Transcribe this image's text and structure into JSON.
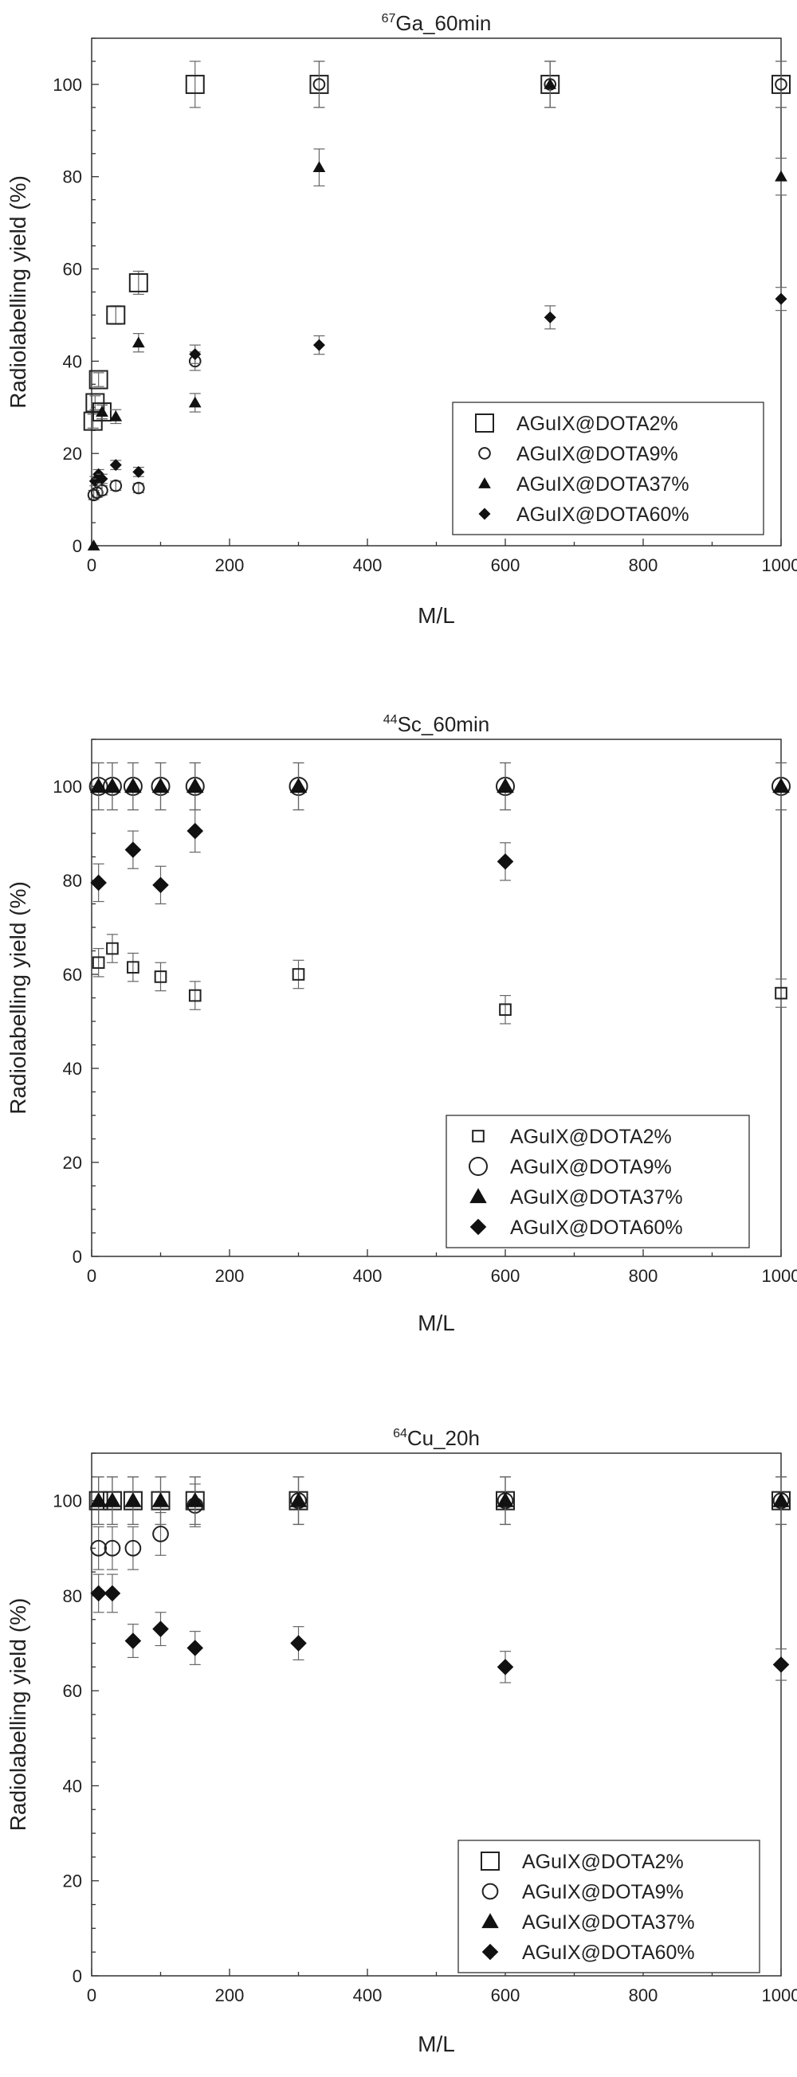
{
  "chart_data": [
    {
      "type": "scatter",
      "title_sup": "67",
      "title": "Ga_60min",
      "xlabel": "M/L",
      "ylabel": "Radiolabelling yield (%)",
      "xlim": [
        0,
        1000
      ],
      "ylim": [
        0,
        110
      ],
      "xticks": [
        0,
        200,
        400,
        600,
        800,
        1000
      ],
      "yticks": [
        0,
        20,
        40,
        60,
        80,
        100
      ],
      "legend_position": "lower-right",
      "series": [
        {
          "name": "AGuIX@DOTA2%",
          "marker": "square-open",
          "size": "large",
          "points": [
            [
              2,
              27,
              1.5
            ],
            [
              5,
              31,
              1.5
            ],
            [
              10,
              36,
              1.5
            ],
            [
              15,
              29,
              1.5
            ],
            [
              35,
              50,
              2
            ],
            [
              68,
              57,
              2.5
            ],
            [
              150,
              100,
              5
            ],
            [
              330,
              100,
              5
            ],
            [
              665,
              100,
              5
            ],
            [
              1000,
              100,
              5
            ]
          ]
        },
        {
          "name": "AGuIX@DOTA9%",
          "marker": "circle-open",
          "size": "small",
          "points": [
            [
              3,
              11,
              1
            ],
            [
              8,
              11.5,
              1
            ],
            [
              15,
              12,
              1
            ],
            [
              35,
              13,
              1
            ],
            [
              68,
              12.5,
              1
            ],
            [
              150,
              40,
              2
            ],
            [
              330,
              100,
              5
            ],
            [
              665,
              100,
              5
            ],
            [
              1000,
              100,
              5
            ]
          ]
        },
        {
          "name": "AGuIX@DOTA37%",
          "marker": "triangle-filled",
          "size": "small",
          "points": [
            [
              3,
              0,
              0
            ],
            [
              15,
              29,
              1.5
            ],
            [
              35,
              28,
              1.5
            ],
            [
              68,
              44,
              2
            ],
            [
              150,
              31,
              2
            ],
            [
              330,
              82,
              4
            ],
            [
              665,
              100,
              5
            ],
            [
              1000,
              80,
              4
            ]
          ]
        },
        {
          "name": "AGuIX@DOTA60%",
          "marker": "diamond-filled",
          "size": "small",
          "points": [
            [
              5,
              14,
              1
            ],
            [
              10,
              15.5,
              1
            ],
            [
              15,
              14.5,
              1
            ],
            [
              35,
              17.5,
              1
            ],
            [
              68,
              16,
              1
            ],
            [
              150,
              41.5,
              2
            ],
            [
              330,
              43.5,
              2
            ],
            [
              665,
              49.5,
              2.5
            ],
            [
              1000,
              53.5,
              2.5
            ]
          ]
        }
      ]
    },
    {
      "type": "scatter",
      "title_sup": "44",
      "title": "Sc_60min",
      "xlabel": "M/L",
      "ylabel": "Radiolabelling yield (%)",
      "xlim": [
        0,
        1000
      ],
      "ylim": [
        0,
        110
      ],
      "xticks": [
        0,
        200,
        400,
        600,
        800,
        1000
      ],
      "yticks": [
        0,
        20,
        40,
        60,
        80,
        100
      ],
      "legend_position": "lower-right",
      "series": [
        {
          "name": "AGuIX@DOTA2%",
          "marker": "square-open",
          "size": "small",
          "points": [
            [
              10,
              62.5,
              3
            ],
            [
              30,
              65.5,
              3
            ],
            [
              60,
              61.5,
              3
            ],
            [
              100,
              59.5,
              3
            ],
            [
              150,
              55.5,
              3
            ],
            [
              300,
              60,
              3
            ],
            [
              600,
              52.5,
              3
            ],
            [
              1000,
              56,
              3
            ]
          ]
        },
        {
          "name": "AGuIX@DOTA9%",
          "marker": "circle-open",
          "size": "large",
          "points": [
            [
              10,
              100,
              5
            ],
            [
              30,
              100,
              5
            ],
            [
              60,
              100,
              5
            ],
            [
              100,
              100,
              5
            ],
            [
              150,
              100,
              5
            ],
            [
              300,
              100,
              5
            ],
            [
              600,
              100,
              5
            ],
            [
              1000,
              100,
              5
            ]
          ]
        },
        {
          "name": "AGuIX@DOTA37%",
          "marker": "triangle-filled",
          "size": "medium",
          "points": [
            [
              10,
              100,
              5
            ],
            [
              30,
              100,
              5
            ],
            [
              60,
              100,
              5
            ],
            [
              100,
              100,
              5
            ],
            [
              150,
              100,
              5
            ],
            [
              300,
              100,
              5
            ],
            [
              600,
              100,
              5
            ],
            [
              1000,
              100,
              5
            ]
          ]
        },
        {
          "name": "AGuIX@DOTA60%",
          "marker": "diamond-filled",
          "size": "medium",
          "points": [
            [
              10,
              79.5,
              4
            ],
            [
              60,
              86.5,
              4
            ],
            [
              100,
              79,
              4
            ],
            [
              150,
              90.5,
              4.5
            ],
            [
              600,
              84,
              4
            ]
          ]
        }
      ]
    },
    {
      "type": "scatter",
      "title_sup": "64",
      "title": "Cu_20h",
      "xlabel": "M/L",
      "ylabel": "Radiolabelling yield (%)",
      "xlim": [
        0,
        1000
      ],
      "ylim": [
        0,
        110
      ],
      "xticks": [
        0,
        200,
        400,
        600,
        800,
        1000
      ],
      "yticks": [
        0,
        20,
        40,
        60,
        80,
        100
      ],
      "legend_position": "lower-right",
      "series": [
        {
          "name": "AGuIX@DOTA2%",
          "marker": "square-open",
          "size": "large",
          "points": [
            [
              10,
              100,
              5
            ],
            [
              30,
              100,
              5
            ],
            [
              60,
              100,
              5
            ],
            [
              100,
              100,
              5
            ],
            [
              150,
              100,
              5
            ],
            [
              300,
              100,
              5
            ],
            [
              600,
              100,
              5
            ],
            [
              1000,
              100,
              5
            ]
          ]
        },
        {
          "name": "AGuIX@DOTA9%",
          "marker": "circle-open",
          "size": "medium",
          "points": [
            [
              10,
              90,
              4.5
            ],
            [
              30,
              90,
              4.5
            ],
            [
              60,
              90,
              4.5
            ],
            [
              100,
              93,
              4.5
            ],
            [
              150,
              99,
              4.5
            ],
            [
              300,
              100,
              5
            ],
            [
              600,
              100,
              5
            ],
            [
              1000,
              100,
              5
            ]
          ]
        },
        {
          "name": "AGuIX@DOTA37%",
          "marker": "triangle-filled",
          "size": "medium",
          "points": [
            [
              10,
              100,
              5
            ],
            [
              30,
              100,
              5
            ],
            [
              60,
              100,
              5
            ],
            [
              100,
              100,
              5
            ],
            [
              150,
              100,
              5
            ],
            [
              300,
              100,
              5
            ],
            [
              600,
              100,
              5
            ],
            [
              1000,
              100,
              5
            ]
          ]
        },
        {
          "name": "AGuIX@DOTA60%",
          "marker": "diamond-filled",
          "size": "medium",
          "points": [
            [
              10,
              80.5,
              4
            ],
            [
              30,
              80.5,
              4
            ],
            [
              60,
              70.5,
              3.5
            ],
            [
              100,
              73,
              3.5
            ],
            [
              150,
              69,
              3.5
            ],
            [
              300,
              70,
              3.5
            ],
            [
              600,
              65,
              3.3
            ],
            [
              1000,
              65.5,
              3.3
            ]
          ]
        }
      ]
    }
  ]
}
